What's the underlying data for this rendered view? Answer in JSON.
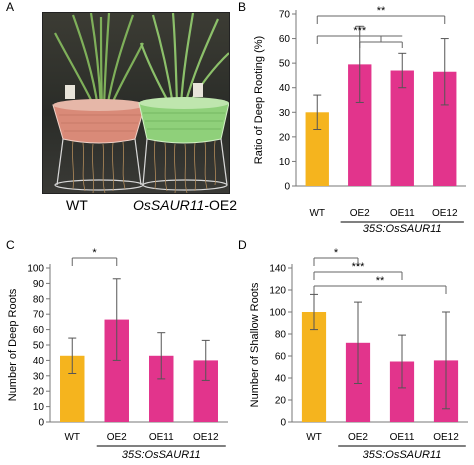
{
  "panels": {
    "A": "A",
    "B": "B",
    "C": "C",
    "D": "D"
  },
  "photo": {
    "label_wt": "WT",
    "label_oe_gene": "OsSAUR11",
    "label_oe_suffix": "-OE2",
    "pot_left_color": "#d98a78",
    "pot_right_color": "#8fd07a"
  },
  "colors": {
    "wt_bar": "#f5b41e",
    "oe_bar": "#e2348c",
    "error": "#d4d4d4"
  },
  "chart_data": [
    {
      "id": "B",
      "type": "bar",
      "categories": [
        "WT",
        "OE2",
        "OE11",
        "OE12"
      ],
      "values": [
        30,
        49.5,
        47,
        46.5
      ],
      "errors": [
        7,
        15.5,
        7,
        13.5
      ],
      "ylabel": "Ratio of Deep Rooting (%)",
      "ylim": [
        0,
        70
      ],
      "yticks": [
        0,
        10,
        20,
        30,
        40,
        50,
        60,
        70
      ],
      "group_label": "35S:OsSAUR11",
      "significance": [
        {
          "from": 0,
          "to": [
            1,
            2
          ],
          "label": "***"
        },
        {
          "from": 0,
          "to": [
            3
          ],
          "label": "**"
        }
      ]
    },
    {
      "id": "C",
      "type": "bar",
      "categories": [
        "WT",
        "OE2",
        "OE11",
        "OE12"
      ],
      "values": [
        43,
        66.5,
        43,
        40
      ],
      "errors": [
        11.5,
        26.5,
        15,
        13
      ],
      "ylabel": "Number of Deep Roots",
      "ylim": [
        0,
        100
      ],
      "yticks": [
        0,
        10,
        20,
        30,
        40,
        50,
        60,
        70,
        80,
        90,
        100
      ],
      "group_label": "35S:OsSAUR11",
      "significance": [
        {
          "from": 0,
          "to": [
            1
          ],
          "label": "*"
        }
      ]
    },
    {
      "id": "D",
      "type": "bar",
      "categories": [
        "WT",
        "OE2",
        "OE11",
        "OE12"
      ],
      "values": [
        100,
        72,
        55,
        56
      ],
      "errors": [
        16,
        37,
        24,
        44
      ],
      "ylabel": "Number of Shallow Roots",
      "ylim": [
        0,
        140
      ],
      "yticks": [
        0,
        20,
        40,
        60,
        80,
        100,
        120,
        140
      ],
      "group_label": "35S:OsSAUR11",
      "significance": [
        {
          "from": 0,
          "to": [
            1
          ],
          "label": "*"
        },
        {
          "from": 0,
          "to": [
            2
          ],
          "label": "***"
        },
        {
          "from": 0,
          "to": [
            3
          ],
          "label": "**"
        }
      ]
    }
  ]
}
